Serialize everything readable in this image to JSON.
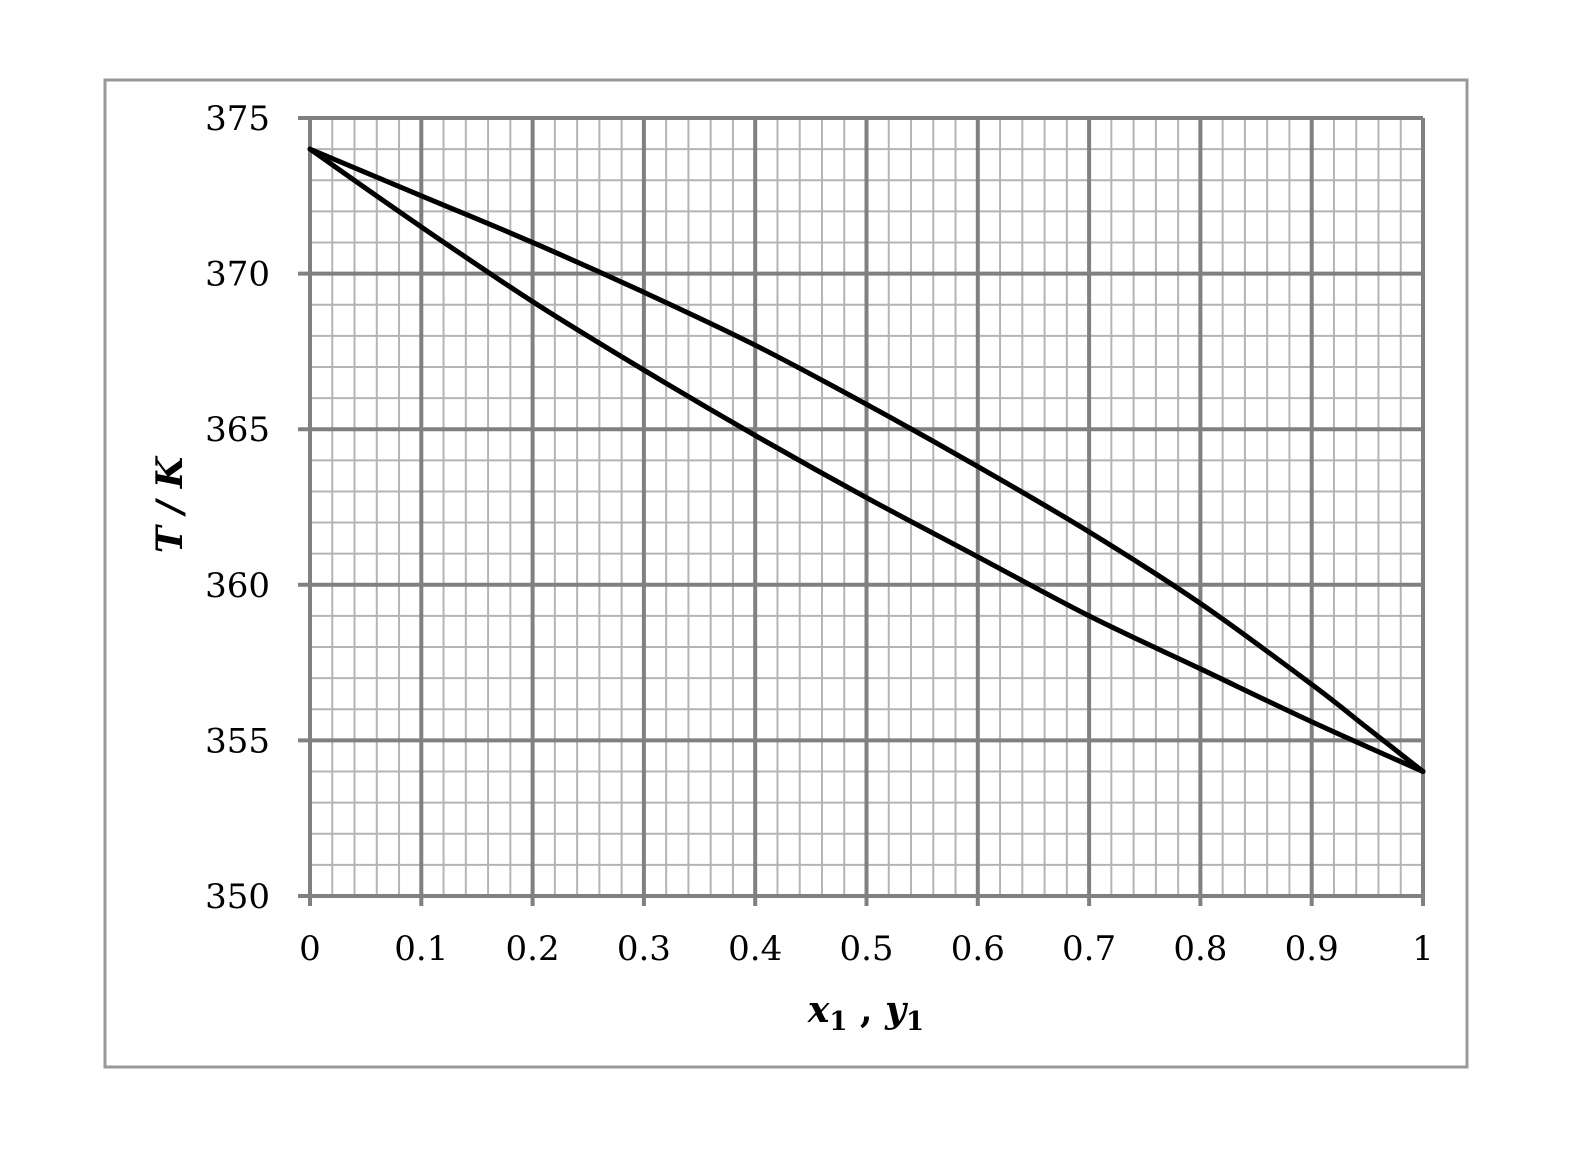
{
  "chart_data": {
    "type": "line",
    "title": "",
    "xlabel": {
      "var1": "x",
      "sub1": "1",
      "sep": " , ",
      "var2": "y",
      "sub2": "1"
    },
    "ylabel": "T / K",
    "xlim": [
      0,
      1
    ],
    "ylim": [
      350,
      375
    ],
    "x_major_step": 0.1,
    "x_minor_step": 0.02,
    "y_major_step": 5,
    "y_minor_step": 1,
    "x_ticks": [
      "0",
      "0.1",
      "0.2",
      "0.3",
      "0.4",
      "0.5",
      "0.6",
      "0.7",
      "0.8",
      "0.9",
      "1"
    ],
    "y_ticks": [
      "350",
      "355",
      "360",
      "365",
      "370",
      "375"
    ],
    "grid": true,
    "legend": "none",
    "colors": {
      "line": "#000000",
      "major_grid": "#808080",
      "minor_grid": "#b4b4b4",
      "frame": "#999999"
    },
    "series": [
      {
        "x": [
          0,
          0.1,
          0.2,
          0.3,
          0.4,
          0.5,
          0.6,
          0.7,
          0.8,
          0.9,
          1.0
        ],
        "y": [
          374,
          371.5,
          369.1,
          366.9,
          364.8,
          362.8,
          360.9,
          359.0,
          357.3,
          355.6,
          354
        ]
      },
      {
        "x": [
          0,
          0.1,
          0.2,
          0.3,
          0.4,
          0.5,
          0.6,
          0.7,
          0.8,
          0.9,
          0.95,
          1.0
        ],
        "y": [
          374,
          372.5,
          371.0,
          369.4,
          367.7,
          365.8,
          363.8,
          361.7,
          359.4,
          356.8,
          355.4,
          354
        ]
      }
    ]
  }
}
